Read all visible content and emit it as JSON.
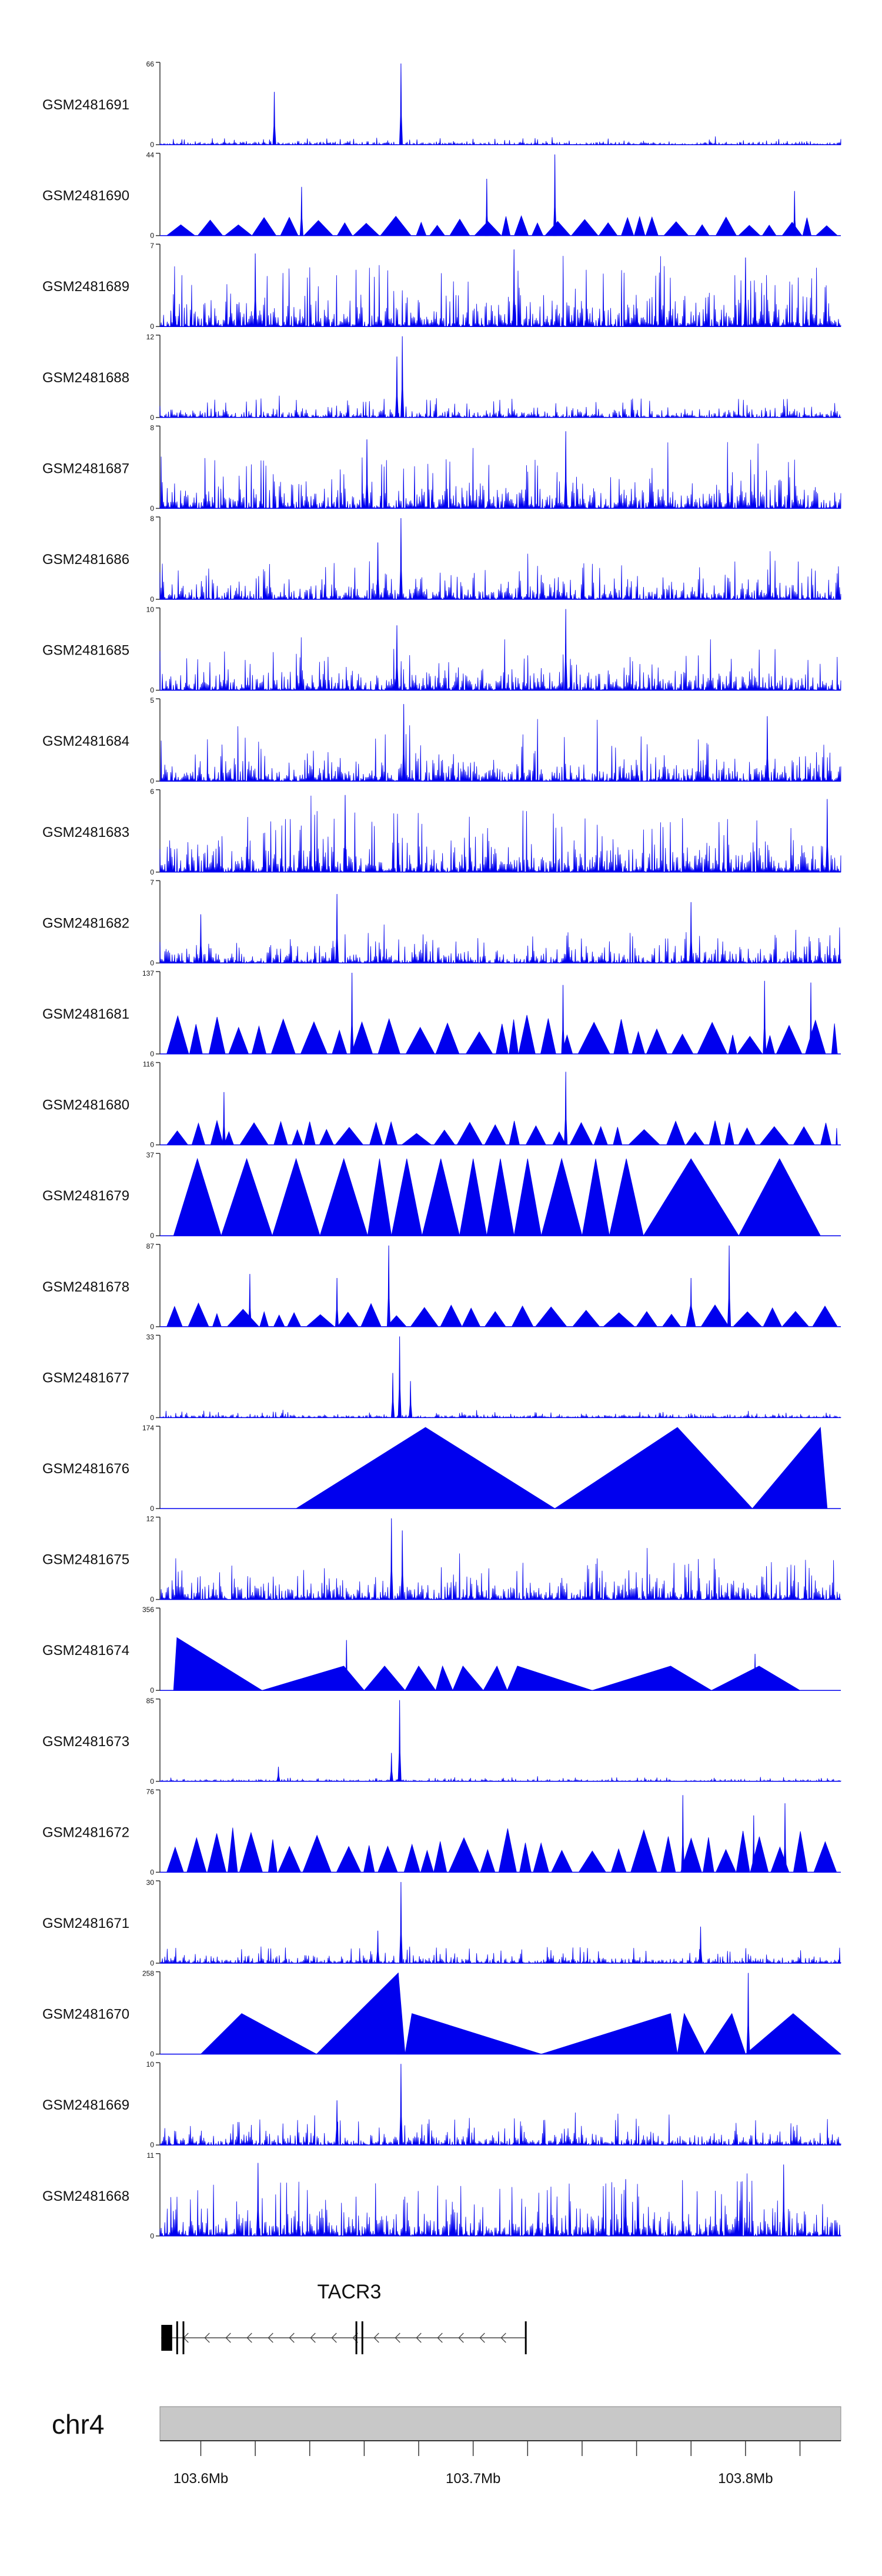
{
  "colors": {
    "track_fill": "#0000ee",
    "axis": "#333333",
    "label": "#111111",
    "chrom_band": "#c8c8c8",
    "gene": "#444444"
  },
  "chart_data": {
    "type": "area",
    "title": "",
    "genomic_range": [
      103.585,
      103.835
    ],
    "tracks": [
      {
        "name": "GSM2481691",
        "ymax": 66,
        "profile": "dense",
        "scale": 0.05,
        "peaks": [
          [
            103.627,
            0.65
          ],
          [
            103.6735,
            1.0
          ]
        ]
      },
      {
        "name": "GSM2481690",
        "ymax": 44,
        "profile": "triangle",
        "scale": 0.25,
        "peaks": [
          [
            103.637,
            0.6
          ],
          [
            103.705,
            0.7
          ],
          [
            103.73,
            1.0
          ],
          [
            103.818,
            0.55
          ]
        ]
      },
      {
        "name": "GSM2481689",
        "ymax": 7,
        "profile": "dense",
        "scale": 0.45,
        "peaks": [
          [
            103.62,
            0.9
          ],
          [
            103.715,
            0.95
          ],
          [
            103.8,
            0.85
          ]
        ]
      },
      {
        "name": "GSM2481688",
        "ymax": 12,
        "profile": "dense",
        "scale": 0.14,
        "peaks": [
          [
            103.674,
            1.0
          ],
          [
            103.672,
            0.75
          ]
        ]
      },
      {
        "name": "GSM2481687",
        "ymax": 8,
        "profile": "dense",
        "scale": 0.38,
        "peaks": [
          [
            103.734,
            0.95
          ],
          [
            103.661,
            0.85
          ]
        ]
      },
      {
        "name": "GSM2481686",
        "ymax": 8,
        "profile": "dense",
        "scale": 0.28,
        "peaks": [
          [
            103.6735,
            1.0
          ],
          [
            103.665,
            0.7
          ]
        ]
      },
      {
        "name": "GSM2481685",
        "ymax": 10,
        "profile": "dense",
        "scale": 0.3,
        "peaks": [
          [
            103.734,
            1.0
          ],
          [
            103.672,
            0.8
          ]
        ]
      },
      {
        "name": "GSM2481684",
        "ymax": 5,
        "profile": "dense",
        "scale": 0.35,
        "peaks": [
          [
            103.6745,
            0.95
          ],
          [
            103.808,
            0.8
          ]
        ]
      },
      {
        "name": "GSM2481683",
        "ymax": 6,
        "profile": "dense",
        "scale": 0.45,
        "peaks": [
          [
            103.653,
            0.95
          ],
          [
            103.83,
            0.9
          ]
        ]
      },
      {
        "name": "GSM2481682",
        "ymax": 7,
        "profile": "dense",
        "scale": 0.22,
        "peaks": [
          [
            103.65,
            0.85
          ],
          [
            103.78,
            0.75
          ],
          [
            103.6,
            0.6
          ]
        ]
      },
      {
        "name": "GSM2481681",
        "ymax": 137,
        "profile": "triangle",
        "scale": 0.48,
        "peaks": [
          [
            103.6555,
            1.0
          ],
          [
            103.807,
            0.9
          ],
          [
            103.824,
            0.88
          ],
          [
            103.733,
            0.85
          ]
        ]
      },
      {
        "name": "GSM2481680",
        "ymax": 116,
        "profile": "triangle",
        "scale": 0.3,
        "peaks": [
          [
            103.6085,
            0.65
          ],
          [
            103.734,
            0.9
          ]
        ]
      },
      {
        "name": "GSM2481679",
        "ymax": 37,
        "profile": "wide",
        "scale": 0.95,
        "peaks": []
      },
      {
        "name": "GSM2481678",
        "ymax": 87,
        "profile": "triangle",
        "scale": 0.3,
        "peaks": [
          [
            103.669,
            1.0
          ],
          [
            103.794,
            1.0
          ],
          [
            103.618,
            0.65
          ],
          [
            103.65,
            0.6
          ],
          [
            103.78,
            0.6
          ]
        ]
      },
      {
        "name": "GSM2481677",
        "ymax": 33,
        "profile": "dense",
        "scale": 0.05,
        "peaks": [
          [
            103.673,
            1.0
          ],
          [
            103.6705,
            0.55
          ],
          [
            103.677,
            0.45
          ]
        ]
      },
      {
        "name": "GSM2481676",
        "ymax": 174,
        "profile": "bigtri",
        "scale": 1.0,
        "peaks": []
      },
      {
        "name": "GSM2481675",
        "ymax": 12,
        "profile": "dense",
        "scale": 0.3,
        "peaks": [
          [
            103.67,
            1.0
          ],
          [
            103.674,
            0.85
          ]
        ]
      },
      {
        "name": "GSM2481674",
        "ymax": 356,
        "profile": "wide_low",
        "scale": 0.35,
        "peaks": [
          [
            103.6535,
            0.62
          ],
          [
            103.8035,
            0.45
          ]
        ]
      },
      {
        "name": "GSM2481673",
        "ymax": 85,
        "profile": "dense",
        "scale": 0.03,
        "peaks": [
          [
            103.673,
            1.0
          ],
          [
            103.67,
            0.35
          ],
          [
            103.6285,
            0.18
          ]
        ]
      },
      {
        "name": "GSM2481672",
        "ymax": 76,
        "profile": "triangle",
        "scale": 0.55,
        "peaks": [
          [
            103.777,
            0.95
          ],
          [
            103.8145,
            0.85
          ],
          [
            103.803,
            0.7
          ]
        ]
      },
      {
        "name": "GSM2481671",
        "ymax": 30,
        "profile": "dense",
        "scale": 0.12,
        "peaks": [
          [
            103.6735,
            1.0
          ],
          [
            103.7835,
            0.45
          ],
          [
            103.665,
            0.4
          ]
        ]
      },
      {
        "name": "GSM2481670",
        "ymax": 258,
        "profile": "wide_tall",
        "scale": 0.5,
        "peaks": [
          [
            103.6725,
            1.0
          ],
          [
            103.801,
            1.0
          ]
        ]
      },
      {
        "name": "GSM2481669",
        "ymax": 10,
        "profile": "dense",
        "scale": 0.2,
        "peaks": [
          [
            103.6735,
            1.0
          ],
          [
            103.65,
            0.55
          ]
        ]
      },
      {
        "name": "GSM2481668",
        "ymax": 11,
        "profile": "dense",
        "scale": 0.4,
        "peaks": [
          [
            103.621,
            0.9
          ],
          [
            103.814,
            0.88
          ],
          [
            103.756,
            0.7
          ]
        ]
      }
    ],
    "gene": {
      "name": "TACR3",
      "strand": "-",
      "start": 103.5855,
      "end": 103.7195,
      "exons": [
        [
          103.5855,
          103.5895
        ],
        [
          103.591,
          103.5916
        ],
        [
          103.5933,
          103.5939
        ],
        [
          103.6568,
          103.6574
        ],
        [
          103.659,
          103.6596
        ],
        [
          103.719,
          103.7196
        ]
      ]
    },
    "chromosome": {
      "name": "chr4",
      "tick_positions": [
        103.6,
        103.62,
        103.64,
        103.66,
        103.68,
        103.7,
        103.72,
        103.74,
        103.76,
        103.78,
        103.8,
        103.82
      ],
      "tick_labels": [
        {
          "pos": 103.6,
          "label": "103.6Mb"
        },
        {
          "pos": 103.7,
          "label": "103.7Mb"
        },
        {
          "pos": 103.8,
          "label": "103.8Mb"
        }
      ]
    }
  }
}
